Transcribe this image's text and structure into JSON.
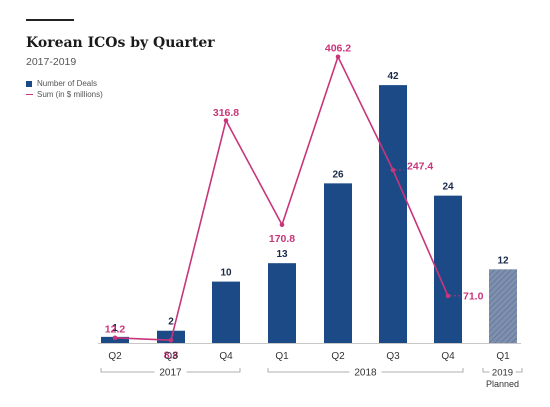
{
  "header": {
    "title": "Korean ICOs by Quarter",
    "subtitle": "2017-2019"
  },
  "legend": {
    "deals_label": "Number of Deals",
    "sum_label": "Sum (in $ millions)"
  },
  "colors": {
    "bar": "#1c4a86",
    "planned_bar": "#7f8fae",
    "line": "#c9357b",
    "axis_text": "#333333"
  },
  "chart_data": {
    "type": "bar",
    "title": "Korean ICOs by Quarter",
    "subtitle": "2017-2019",
    "categories": [
      "Q2",
      "Q3",
      "Q4",
      "Q1",
      "Q2",
      "Q3",
      "Q4",
      "Q1"
    ],
    "year_groups": [
      {
        "label": "2017",
        "from": 0,
        "to": 2
      },
      {
        "label": "2018",
        "from": 3,
        "to": 6
      },
      {
        "label": "2019 - Planned",
        "from": 7,
        "to": 7
      }
    ],
    "series": [
      {
        "name": "Number of Deals",
        "type": "bar",
        "values": [
          1,
          2,
          10,
          13,
          26,
          42,
          24,
          12
        ],
        "planned": [
          false,
          false,
          false,
          false,
          false,
          false,
          false,
          true
        ]
      },
      {
        "name": "Sum (in $ millions)",
        "type": "line",
        "values": [
          12.2,
          8.8,
          316.8,
          170.8,
          406.2,
          247.4,
          71.0,
          null
        ]
      }
    ],
    "legend_position": "top-left",
    "grid": false
  }
}
